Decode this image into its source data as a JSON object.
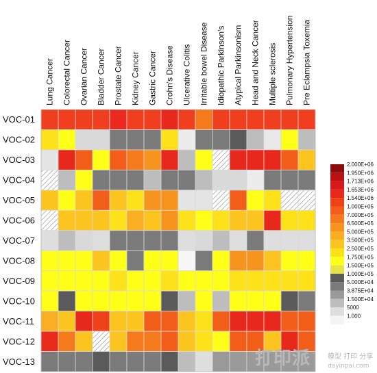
{
  "chart_data": {
    "type": "heatmap",
    "columns": [
      "Lung Cancer",
      "Colorectal Cancer",
      "Ovarian Cancer",
      "Bladder Cancer",
      "Prostate Cancer",
      "Kidney Cancer",
      "Gastric Cancer",
      "Crohn's Disease",
      "Ulcerative Colitis",
      "Irritable bowel Disease",
      "Idiopathic Parkinson's",
      "Atypical Parkinsonism",
      "Head and Neck Cancer",
      "Multiple sclerosis",
      "Pulmonary Hypertension",
      "Pre Eclampsia Toxemia"
    ],
    "rows": [
      "VOC-01",
      "VOC-02",
      "VOC-03",
      "VOC-04",
      "VOC-05",
      "VOC-06",
      "VOC-07",
      "VOC-08",
      "VOC-09",
      "VOC-10",
      "VOC-11",
      "VOC-12",
      "VOC-13"
    ],
    "legend": {
      "labels": [
        "2.000E+06",
        "1.950E+06",
        "1.713E+06",
        "1.653E+06",
        "1.540E+06",
        "1.000E+05",
        "7.000E+05",
        "6.500E+05",
        "5.000E+05",
        "3.500E+05",
        "2.500E+05",
        "1.750E+05",
        "1.500E+05",
        "1.000E+05",
        "5.000E+04",
        "3.875E+04",
        "1.500E+04",
        "5000",
        "1.000"
      ],
      "colors": [
        "#8b0e0e",
        "#b81212",
        "#d61a1a",
        "#e8281a",
        "#f0421a",
        "#f25e1a",
        "#f47a1c",
        "#f6941f",
        "#f8ae20",
        "#fbc41f",
        "#fde21a",
        "#ffff18",
        "#e4e44a",
        "#5a5a5a",
        "#7a7a7a",
        "#9a9a9a",
        "#bdbdbd",
        "#dedede",
        "#f4f4f4"
      ]
    },
    "cells": [
      [
        "#ef3f1f",
        "#ef3f1f",
        "#ef3f1f",
        "#ef3f1f",
        "#ea2a1f",
        "#ef3f1f",
        "#ef3f1f",
        "#e8281a",
        "#ef3f1f",
        "#f47a1c",
        "#ef3f1f",
        "#ef3f1f",
        "#ef3f1f",
        "#ef3f1f",
        "#ef3f1f",
        "#ef3f1f"
      ],
      [
        "#fde21a",
        "#ffff18",
        "#d9d9d9",
        "#d9d9d9",
        "#7a7a7a",
        "#7a7a7a",
        "#7a7a7a",
        "#fde21a",
        "#ececec",
        "#7a7a7a",
        "#7a7a7a",
        "#5a5a5a",
        "#bdbdbd",
        "#e8e8e8",
        "#ffff18",
        "#bdbdbd"
      ],
      [
        "#e4e4e4",
        "#e8281a",
        "#f25e1a",
        "#ffff18",
        "#f25e1a",
        "#f47a1c",
        "#f6941f",
        "#e8281a",
        "#bdbdbd",
        "#ffff18",
        "HATCH",
        "#e8281a",
        "#e8281a",
        "#e8281a",
        "#f25e1a",
        "#fbc41f"
      ],
      [
        "HATCH",
        "#bdbdbd",
        "#ffff18",
        "#7a7a7a",
        "#7a7a7a",
        "#7a7a7a",
        "#bdbdbd",
        "#7a7a7a",
        "#7a7a7a",
        "#bdbdbd",
        "#d9d9d9",
        "#d9d9d9",
        "#ececec",
        "#7a7a7a",
        "#7a7a7a",
        "#7a7a7a"
      ],
      [
        "#fbc41f",
        "#ffff18",
        "#fbc41f",
        "#f25e1a",
        "#fbc41f",
        "#fde21a",
        "#f6941f",
        "#f6941f",
        "#e4e4e4",
        "#e4e4e4",
        "HATCH",
        "#f25e1a",
        "#ffff18",
        "#fde21a",
        "HATCH",
        "HATCH"
      ],
      [
        "HATCH",
        "#fbc41f",
        "#fbc41f",
        "#fbc41f",
        "#fde21a",
        "#f8ae20",
        "#fbc41f",
        "#f6941f",
        "#fde21a",
        "#ffff18",
        "#fde21a",
        "#fbc41f",
        "#fbc41f",
        "#e8281a",
        "#fde21a",
        "#fde21a"
      ],
      [
        "#dedede",
        "#bdbdbd",
        "#d9d9d9",
        "#dedede",
        "#7a7a7a",
        "#7a7a7a",
        "#7a7a7a",
        "#7a7a7a",
        "#dedede",
        "#d9d9d9",
        "#bdbdbd",
        "#dedede",
        "#7a7a7a",
        "#dedede",
        "#dedede",
        "#dedede"
      ],
      [
        "#ffff18",
        "#ffff18",
        "#ffff18",
        "#fbc41f",
        "#ffff18",
        "#7a7a7a",
        "#ffff18",
        "#ffff18",
        "#f6f6f6",
        "#7a7a7a",
        "#ffff18",
        "#f6941f",
        "#f6941f",
        "#fbc41f",
        "#ffff18",
        "#ffff18"
      ],
      [
        "#ffff18",
        "#ffff18",
        "#ffff18",
        "#ffff18",
        "#fde21a",
        "#ffff18",
        "#ffff18",
        "#fde21a",
        "#ffff18",
        "#ffff18",
        "#ffff18",
        "#fde21a",
        "#fde21a",
        "#fde21a",
        "#fde21a",
        "#fde21a"
      ],
      [
        "#ffff18",
        "#5a5a5a",
        "#ffff18",
        "#ffff18",
        "#ffff18",
        "#ffff18",
        "#ffff18",
        "#5a5a5a",
        "#bdbdbd",
        "#ffff18",
        "#bdbdbd",
        "#ffff18",
        "#ffff18",
        "#ffff18",
        "#5a5a5a",
        "#7a7a7a"
      ],
      [
        "#f8ae20",
        "#fbc41f",
        "#e8281a",
        "#f0421a",
        "#fbc41f",
        "#fbc41f",
        "#f25e1a",
        "#f25e1a",
        "#fbc41f",
        "#fde21a",
        "#f25e1a",
        "#e8281a",
        "#e8281a",
        "#e8281a",
        "#f25e1a",
        "#f25e1a"
      ],
      [
        "#ea2a1a",
        "#f47a1c",
        "#fbc41f",
        "HATCH",
        "#fbc41f",
        "#f47a1c",
        "#f47a1c",
        "#f25e1a",
        "#fbc41f",
        "#fde21a",
        "#ffff18",
        "#f25e1a",
        "#f25e1a",
        "#fbc41f",
        "#e8281a",
        "#f25e1a"
      ],
      [
        "#7a7a7a",
        "#7a7a7a",
        "#7a7a7a",
        "#5a5a5a",
        "#7a7a7a",
        "#7a7a7a",
        "#7a7a7a",
        "#5a5a5a",
        "#bdbdbd",
        "#dedede",
        "#9a9a9a",
        "#9a9a9a",
        "#9a9a9a",
        "#9a9a9a",
        "#9a9a9a",
        "#9a9a9a"
      ]
    ]
  },
  "watermark": {
    "main": "打印派",
    "sub": "模型 打印 分享",
    "url": "dayinpai.com"
  }
}
